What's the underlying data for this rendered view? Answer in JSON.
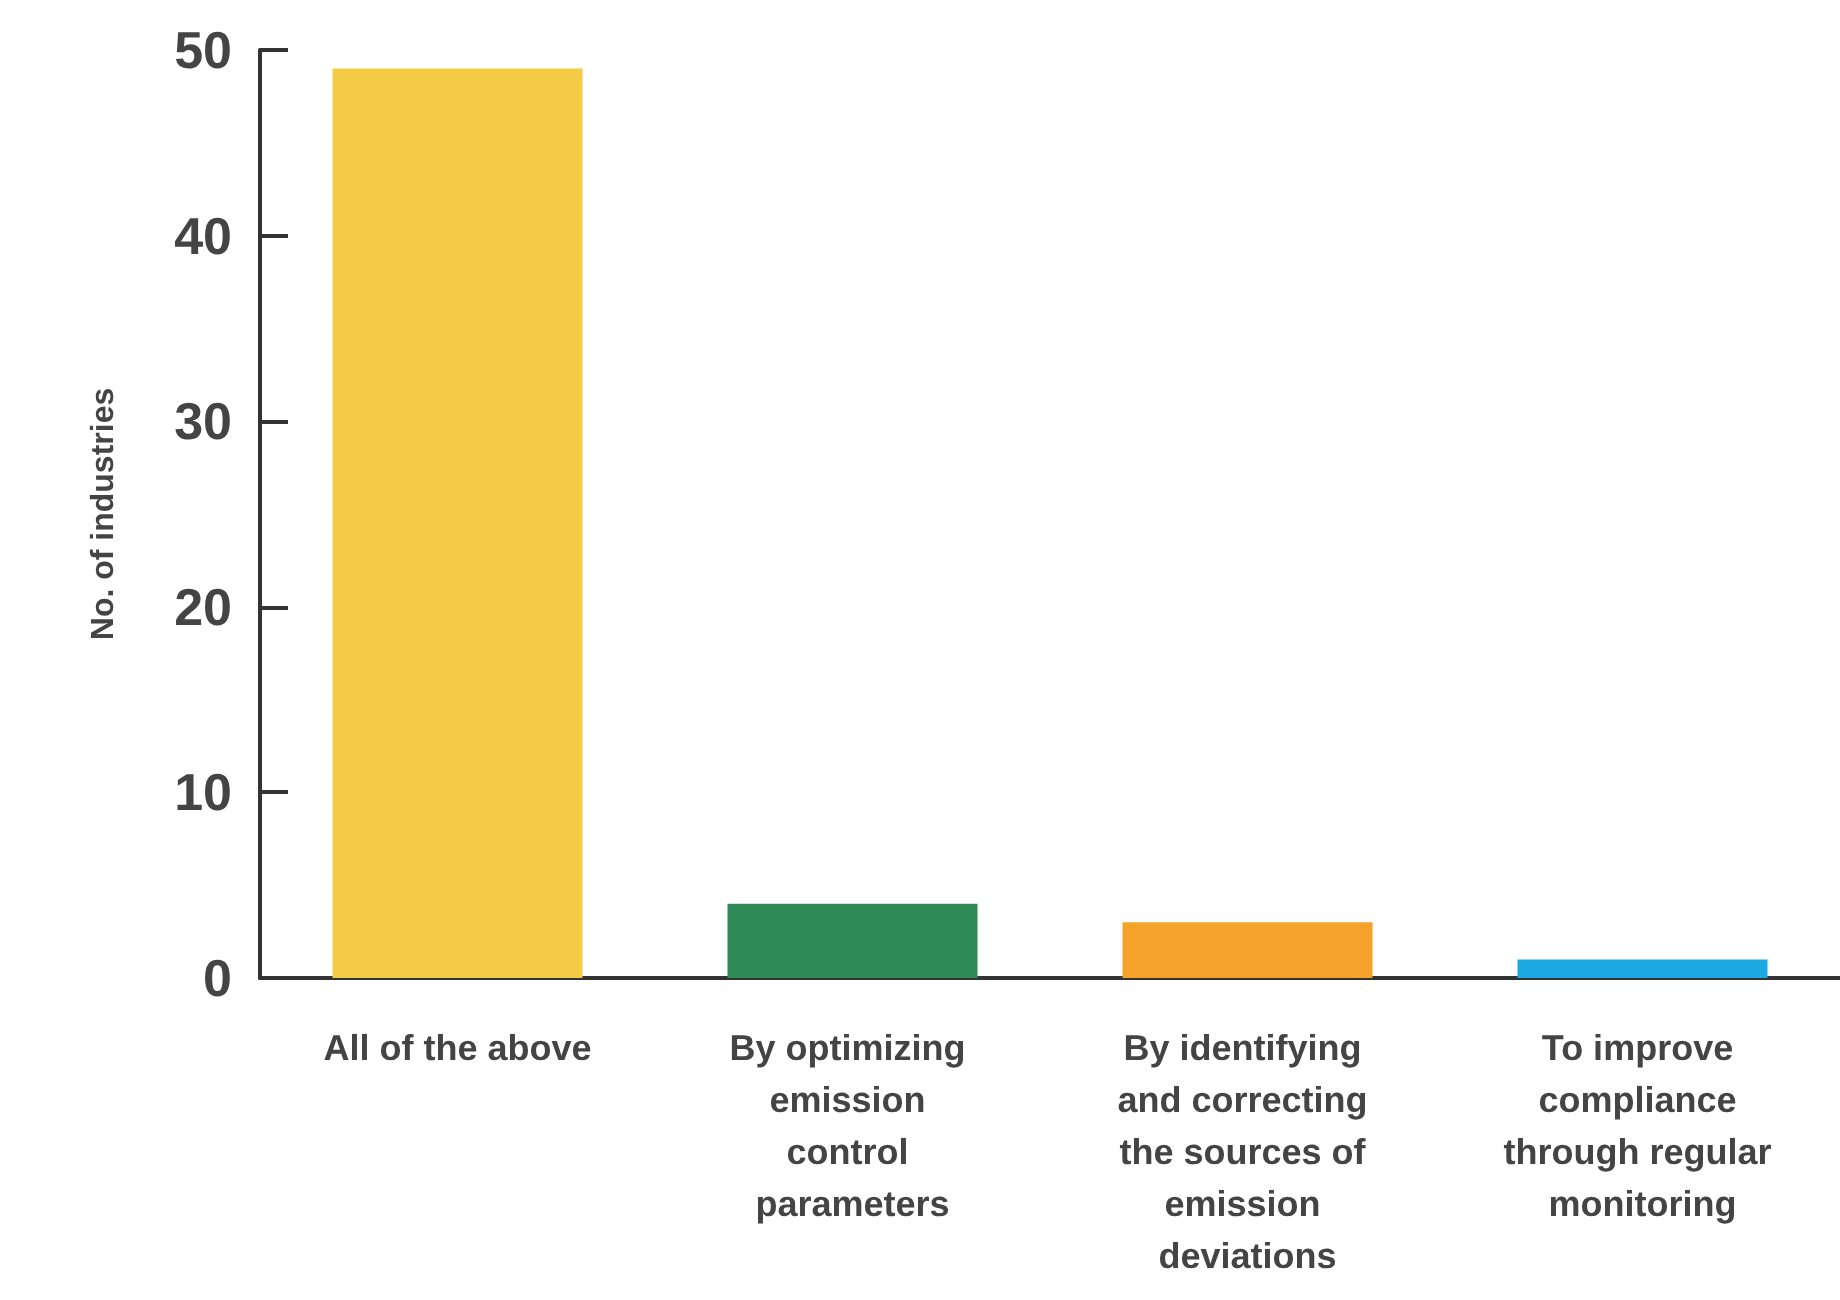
{
  "chart_data": {
    "type": "bar",
    "ylabel": "No. of industries",
    "categories": [
      "All of the above",
      "By optimizing emission control parameters",
      "By identifying and correcting the sources of emission deviations",
      "To improve compliance through regular monitoring"
    ],
    "values": [
      49,
      4,
      3,
      1
    ],
    "colors": [
      "#f4cb45",
      "#2e8b57",
      "#f5a22a",
      "#1ca9e1"
    ],
    "ylim": [
      0,
      50
    ],
    "yticks": [
      0,
      10,
      20,
      30,
      40,
      50
    ],
    "grid": false
  }
}
